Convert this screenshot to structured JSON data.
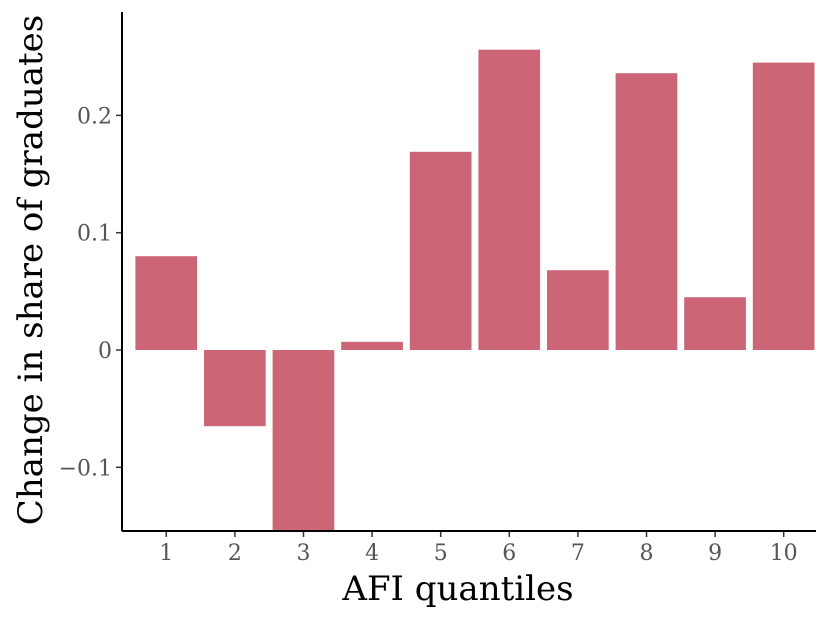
{
  "chart_data": {
    "type": "bar",
    "title": "",
    "xlabel": "AFI quantiles",
    "ylabel": "Change in share of graduates",
    "categories": [
      "1",
      "2",
      "3",
      "4",
      "5",
      "6",
      "7",
      "8",
      "9",
      "10"
    ],
    "values": [
      0.08,
      -0.065,
      -0.155,
      0.007,
      0.169,
      0.256,
      0.068,
      0.236,
      0.045,
      0.245
    ],
    "ylim": [
      -0.155,
      0.29
    ],
    "yticks": [
      -0.1,
      0,
      0.1,
      0.2
    ],
    "ytick_labels": [
      "−0.1",
      "0",
      "0.1",
      "0.2"
    ],
    "grid": false,
    "legend": "none",
    "bar_color": "#cc6677"
  }
}
